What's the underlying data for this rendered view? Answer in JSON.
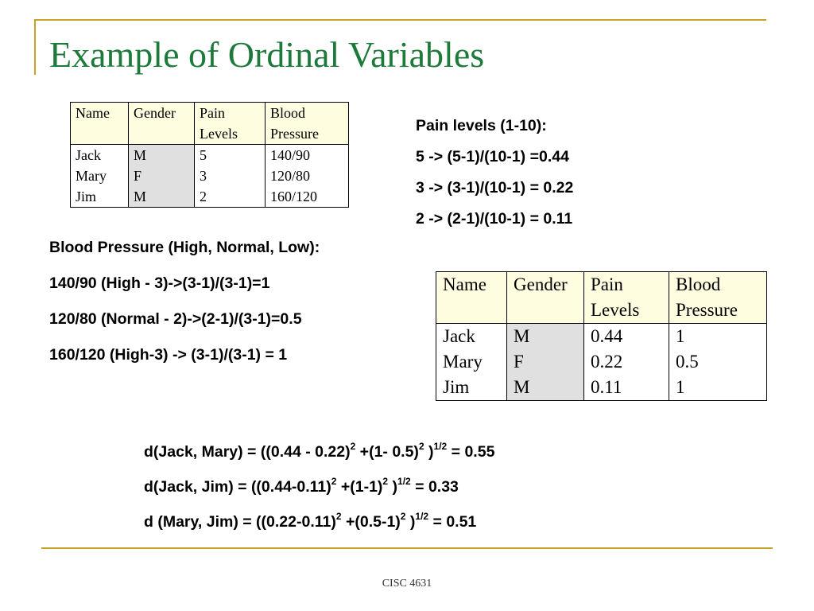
{
  "title": "Example of Ordinal Variables",
  "original_table": {
    "headers": [
      "Name",
      "Gender",
      "Pain Levels",
      "Blood Pressure"
    ],
    "names": [
      "Jack",
      "Mary",
      "Jim"
    ],
    "genders": [
      "M",
      "F",
      "M"
    ],
    "pain_levels": [
      "5",
      "3",
      "2"
    ],
    "blood_pressure": [
      "140/90",
      "120/80",
      "160/120"
    ]
  },
  "pain_section": {
    "heading": "Pain levels (1-10):",
    "lines": [
      "5 -> (5-1)/(10-1) =0.44",
      "3 -> (3-1)/(10-1) = 0.22",
      "2 -> (2-1)/(10-1) = 0.11"
    ]
  },
  "bp_section": {
    "heading": "Blood Pressure (High, Normal, Low):",
    "lines": [
      "140/90 (High - 3)->(3-1)/(3-1)=1",
      "120/80 (Normal - 2)->(2-1)/(3-1)=0.5",
      "160/120 (High-3) -> (3-1)/(3-1) = 1"
    ]
  },
  "normalized_table": {
    "headers": [
      "Name",
      "Gender",
      "Pain Levels",
      "Blood Pressure"
    ],
    "names": [
      "Jack",
      "Mary",
      "Jim"
    ],
    "genders": [
      "M",
      "F",
      "M"
    ],
    "pain_levels": [
      "0.44",
      "0.22",
      "0.11"
    ],
    "blood_pressure": [
      "1",
      "0.5",
      "1"
    ]
  },
  "distances": [
    {
      "a": "d(Jack, Mary) = ((0.44 - 0.22)",
      "b": "2",
      "c": " +(1- 0.5)",
      "d": "2",
      "e": " )",
      "f": "1/2",
      "g": " = 0.55"
    },
    {
      "a": "d(Jack, Jim) = ((0.44-0.11)",
      "b": "2",
      "c": " +(1-1)",
      "d": "2",
      "e": " )",
      "f": "1/2",
      "g": " = 0.33"
    },
    {
      "a": "d (Mary, Jim) = ((0.22-0.11)",
      "b": "2",
      "c": " +(0.5-1)",
      "d": "2",
      "e": " )",
      "f": "1/2",
      "g": " = 0.51"
    }
  ],
  "footer": "CISC 4631",
  "colors": {
    "title": "#1e7a3a",
    "frame": "#c9a227",
    "header_bg": "#fffde0",
    "gender_bg": "#e0e0e0"
  }
}
